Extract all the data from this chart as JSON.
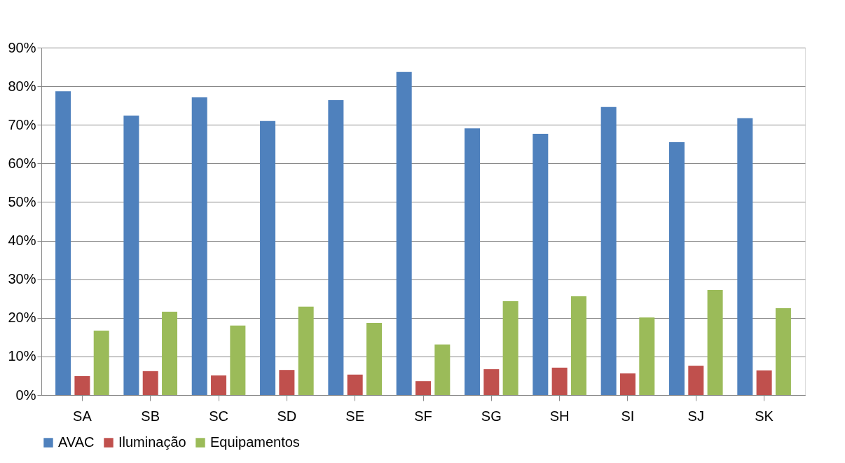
{
  "chart_data": {
    "type": "bar",
    "categories": [
      "SA",
      "SB",
      "SC",
      "SD",
      "SE",
      "SF",
      "SG",
      "SH",
      "SI",
      "SJ",
      "SK"
    ],
    "series": [
      {
        "name": "AVAC",
        "color": "#4f81bd",
        "values": [
          78.7,
          72.4,
          77.1,
          71.0,
          76.4,
          83.7,
          69.1,
          67.7,
          74.6,
          65.5,
          71.7
        ]
      },
      {
        "name": "Iluminação",
        "color": "#c0504d",
        "values": [
          4.9,
          6.2,
          5.1,
          6.5,
          5.3,
          3.6,
          6.7,
          7.1,
          5.6,
          7.6,
          6.4
        ]
      },
      {
        "name": "Equipamentos",
        "color": "#9bbb59",
        "values": [
          16.7,
          21.6,
          18.0,
          22.9,
          18.7,
          13.1,
          24.3,
          25.6,
          20.1,
          27.2,
          22.5
        ]
      }
    ],
    "ylim": [
      0,
      90
    ],
    "yticks": [
      {
        "value": 0,
        "label": "0%"
      },
      {
        "value": 10,
        "label": "10%"
      },
      {
        "value": 20,
        "label": "20%"
      },
      {
        "value": 30,
        "label": "30%"
      },
      {
        "value": 40,
        "label": "40%"
      },
      {
        "value": 50,
        "label": "50%"
      },
      {
        "value": 60,
        "label": "60%"
      },
      {
        "value": 70,
        "label": "70%"
      },
      {
        "value": 80,
        "label": "80%"
      },
      {
        "value": 90,
        "label": "90%"
      }
    ],
    "grid": "y",
    "legend": "bottom"
  }
}
